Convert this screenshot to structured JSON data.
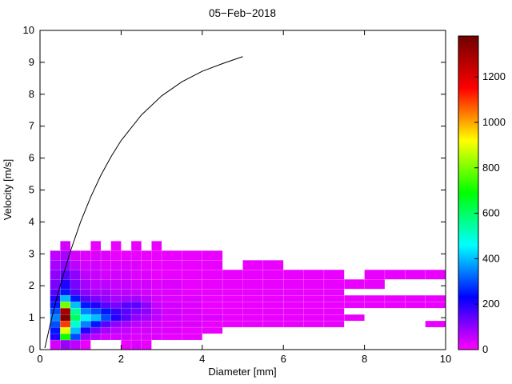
{
  "figure": {
    "title": "05−Feb−2018",
    "xlabel": "Diameter [mm]",
    "ylabel": "Velocity [m/s]"
  },
  "chart_data": {
    "type": "heatmap",
    "title": "05−Feb−2018",
    "xlabel": "Diameter [mm]",
    "ylabel": "Velocity [m/s]",
    "xlim": [
      0,
      10
    ],
    "ylim": [
      0,
      10
    ],
    "xticks": [
      0,
      2,
      4,
      6,
      8,
      10
    ],
    "yticks": [
      0,
      1,
      2,
      3,
      4,
      5,
      6,
      7,
      8,
      9,
      10
    ],
    "grid": false,
    "legend": "none",
    "colorbar": {
      "position": "right",
      "min": 0,
      "max": 1380,
      "ticks": [
        0,
        200,
        400,
        600,
        800,
        1000,
        1200
      ],
      "colormap_stops": [
        [
          0,
          "#ff00ff"
        ],
        [
          0.167,
          "#0000ff"
        ],
        [
          0.333,
          "#00ffff"
        ],
        [
          0.5,
          "#00ff00"
        ],
        [
          0.667,
          "#ffff00"
        ],
        [
          0.833,
          "#ff0000"
        ],
        [
          1,
          "#700000"
        ]
      ]
    },
    "heatmap": {
      "x_name": "diameter_bin_edges_mm",
      "y_name": "velocity_bin_edges_ms",
      "d_edges": [
        0.25,
        0.5,
        0.75,
        1.0,
        1.25,
        1.5,
        1.75,
        2.0,
        2.25,
        2.5,
        2.75,
        3.0,
        3.5,
        4.0,
        4.5,
        5.0,
        5.5,
        6.0,
        6.5,
        7.0,
        7.5,
        8.0,
        8.5,
        9.0,
        9.5,
        10.0
      ],
      "v_edges": [
        0,
        0.3,
        0.5,
        0.7,
        0.9,
        1.1,
        1.3,
        1.5,
        1.7,
        1.9,
        2.2,
        2.5,
        2.8,
        3.1,
        3.4
      ],
      "counts": [
        [
          40,
          90,
          60,
          20,
          0,
          0,
          0,
          20,
          30,
          20,
          0,
          0,
          0,
          0,
          0,
          0,
          0,
          0,
          0,
          0,
          0,
          0,
          0,
          0,
          0
        ],
        [
          200,
          700,
          300,
          90,
          60,
          40,
          40,
          40,
          30,
          30,
          30,
          20,
          20,
          0,
          0,
          0,
          0,
          0,
          0,
          0,
          0,
          0,
          0,
          0,
          0
        ],
        [
          250,
          900,
          400,
          200,
          120,
          80,
          60,
          50,
          40,
          40,
          30,
          30,
          20,
          20,
          0,
          0,
          0,
          0,
          0,
          0,
          0,
          0,
          0,
          0,
          0
        ],
        [
          300,
          1100,
          500,
          350,
          250,
          150,
          100,
          80,
          60,
          50,
          40,
          30,
          30,
          20,
          20,
          20,
          20,
          20,
          20,
          20,
          0,
          0,
          0,
          0,
          20
        ],
        [
          350,
          1350,
          600,
          450,
          400,
          300,
          200,
          150,
          100,
          80,
          60,
          40,
          30,
          30,
          20,
          20,
          20,
          20,
          20,
          20,
          20,
          0,
          0,
          0,
          0
        ],
        [
          300,
          1300,
          550,
          350,
          300,
          250,
          180,
          150,
          120,
          100,
          60,
          40,
          30,
          20,
          20,
          20,
          20,
          20,
          20,
          20,
          0,
          0,
          0,
          0,
          0
        ],
        [
          250,
          800,
          400,
          250,
          200,
          150,
          120,
          150,
          150,
          100,
          50,
          40,
          30,
          20,
          20,
          20,
          20,
          20,
          20,
          20,
          20,
          20,
          20,
          20,
          20
        ],
        [
          200,
          400,
          250,
          150,
          120,
          100,
          80,
          80,
          80,
          60,
          40,
          30,
          30,
          20,
          20,
          20,
          20,
          20,
          20,
          20,
          20,
          20,
          20,
          20,
          20
        ],
        [
          150,
          250,
          150,
          100,
          80,
          80,
          60,
          60,
          50,
          40,
          30,
          30,
          20,
          20,
          20,
          20,
          20,
          20,
          20,
          20,
          0,
          0,
          0,
          0,
          0
        ],
        [
          120,
          200,
          120,
          80,
          60,
          60,
          50,
          50,
          40,
          40,
          30,
          30,
          20,
          20,
          20,
          20,
          20,
          20,
          20,
          20,
          20,
          20,
          0,
          0,
          0
        ],
        [
          100,
          150,
          100,
          60,
          50,
          40,
          40,
          40,
          30,
          30,
          20,
          20,
          20,
          20,
          20,
          20,
          20,
          20,
          20,
          20,
          0,
          20,
          20,
          20,
          20
        ],
        [
          80,
          100,
          60,
          40,
          40,
          30,
          30,
          30,
          30,
          20,
          20,
          20,
          20,
          20,
          0,
          20,
          20,
          0,
          0,
          0,
          0,
          0,
          0,
          0,
          0
        ],
        [
          60,
          80,
          40,
          30,
          30,
          30,
          20,
          20,
          20,
          20,
          20,
          20,
          20,
          20,
          0,
          0,
          0,
          0,
          0,
          0,
          0,
          0,
          0,
          0,
          0
        ],
        [
          0,
          40,
          0,
          0,
          20,
          0,
          20,
          0,
          20,
          0,
          20,
          0,
          0,
          0,
          0,
          0,
          0,
          0,
          0,
          0,
          0,
          0,
          0,
          0,
          0
        ]
      ]
    },
    "overlay_curve": {
      "name": "terminal-velocity-curve",
      "color": "#000000",
      "points_d": [
        0.12,
        0.25,
        0.4,
        0.5,
        0.75,
        1.0,
        1.25,
        1.5,
        1.75,
        2.0,
        2.5,
        3.0,
        3.5,
        4.0,
        4.5,
        5.0
      ],
      "points_v": [
        0.05,
        0.78,
        1.55,
        2.02,
        3.08,
        4.0,
        4.78,
        5.46,
        6.04,
        6.55,
        7.35,
        7.95,
        8.39,
        8.72,
        8.96,
        9.18
      ]
    }
  }
}
